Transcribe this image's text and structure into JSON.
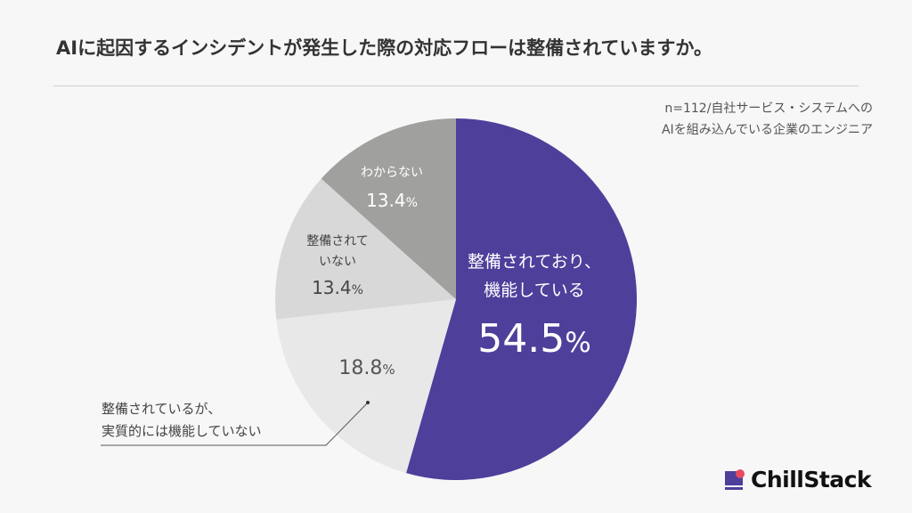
{
  "title": "AIに起因するインシデントが発生した際の対応フローは整備されていますか。",
  "note": {
    "line1": "n=112/自社サービス・システムへの",
    "line2": "AIを組み込んでいる企業のエンジニア"
  },
  "logo": {
    "name": "ChillStack"
  },
  "chart_data": {
    "type": "pie",
    "title": "AIに起因するインシデントが発生した際の対応フローは整備されていますか。",
    "start": "top",
    "direction": "clockwise",
    "slices": [
      {
        "label_lines": [
          "整備されており、",
          "機能している"
        ],
        "value": 54.5,
        "display": "54.5",
        "color": "#4e3f9b",
        "text_color": "#ffffff"
      },
      {
        "label_lines": [
          "整備されているが、",
          "実質的には機能していない"
        ],
        "value": 18.8,
        "display": "18.8",
        "color": "#e8e8e8",
        "text_color": "#555555"
      },
      {
        "label_lines": [
          "整備されて",
          "いない"
        ],
        "value": 13.4,
        "display": "13.4",
        "color": "#d8d8d8",
        "text_color": "#444444"
      },
      {
        "label_lines": [
          "わからない"
        ],
        "value": 13.4,
        "display": "13.4",
        "color": "#a0a09e",
        "text_color": "#ffffff"
      }
    ],
    "unit": "%"
  }
}
